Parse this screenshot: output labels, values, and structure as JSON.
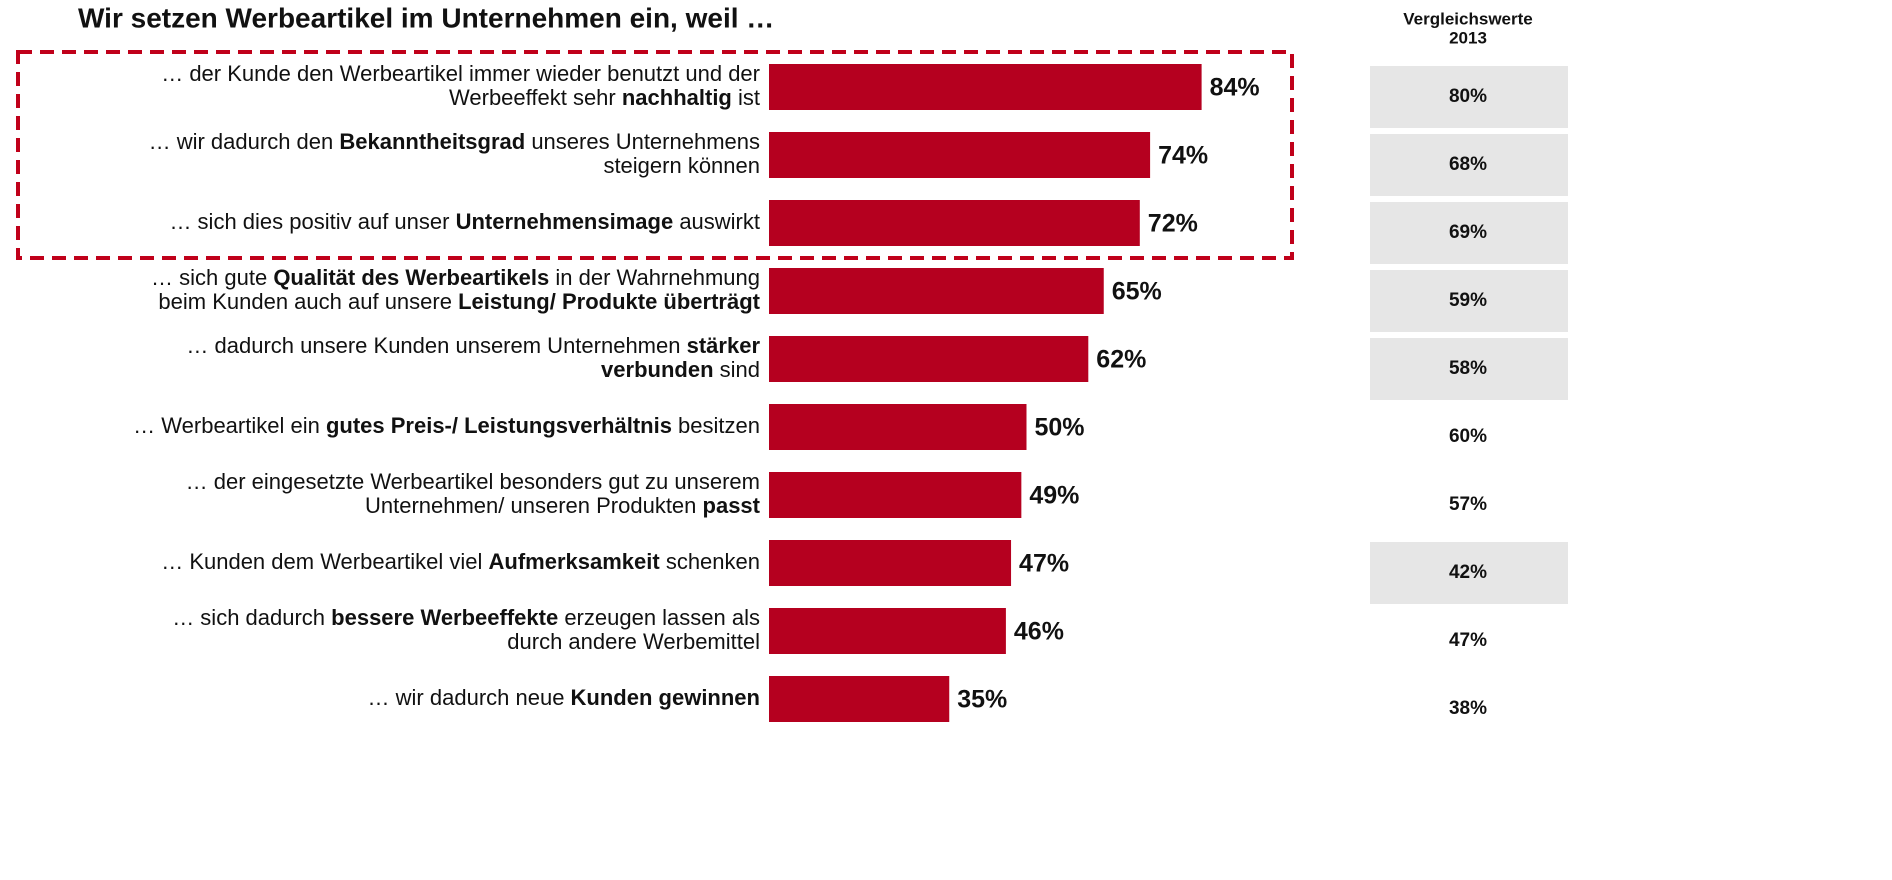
{
  "chart_data": {
    "type": "bar",
    "title": "Wir setzen Werbeartikel im Unternehmen ein, weil …",
    "categories": [
      [
        [
          {
            "text": "… der Kunde den Werbeartikel immer wieder benutzt und der",
            "bold": false
          }
        ],
        [
          {
            "text": "Werbeeffekt sehr ",
            "bold": false
          },
          {
            "text": "nachhaltig",
            "bold": true
          },
          {
            "text": " ist",
            "bold": false
          }
        ]
      ],
      [
        [
          {
            "text": "… wir dadurch den ",
            "bold": false
          },
          {
            "text": "Bekanntheitsgrad",
            "bold": true
          },
          {
            "text": " unseres Unternehmens",
            "bold": false
          }
        ],
        [
          {
            "text": "steigern können",
            "bold": false
          }
        ]
      ],
      [
        [
          {
            "text": "… sich dies positiv auf unser ",
            "bold": false
          },
          {
            "text": "Unternehmensimage",
            "bold": true
          },
          {
            "text": " auswirkt",
            "bold": false
          }
        ]
      ],
      [
        [
          {
            "text": "… sich gute ",
            "bold": false
          },
          {
            "text": "Qualität des Werbeartikels",
            "bold": true
          },
          {
            "text": " in der Wahrnehmung",
            "bold": false
          }
        ],
        [
          {
            "text": "beim Kunden auch auf unsere ",
            "bold": false
          },
          {
            "text": "Leistung/ Produkte überträgt",
            "bold": true
          }
        ]
      ],
      [
        [
          {
            "text": "… dadurch unsere Kunden unserem Unternehmen ",
            "bold": false
          },
          {
            "text": "stärker",
            "bold": true
          }
        ],
        [
          {
            "text": "verbunden",
            "bold": true
          },
          {
            "text": " sind",
            "bold": false
          }
        ]
      ],
      [
        [
          {
            "text": "… Werbeartikel ein ",
            "bold": false
          },
          {
            "text": "gutes Preis-/ Leistungsverhältnis",
            "bold": true
          },
          {
            "text": " besitzen",
            "bold": false
          }
        ]
      ],
      [
        [
          {
            "text": "… der eingesetzte Werbeartikel besonders gut zu unserem",
            "bold": false
          }
        ],
        [
          {
            "text": "Unternehmen/ unseren Produkten ",
            "bold": false
          },
          {
            "text": "passt",
            "bold": true
          }
        ]
      ],
      [
        [
          {
            "text": "… Kunden dem Werbeartikel viel ",
            "bold": false
          },
          {
            "text": "Aufmerksamkeit",
            "bold": true
          },
          {
            "text": " schenken",
            "bold": false
          }
        ]
      ],
      [
        [
          {
            "text": "… sich dadurch ",
            "bold": false
          },
          {
            "text": "bessere Werbeeffekte",
            "bold": true
          },
          {
            "text": " erzeugen lassen als",
            "bold": false
          }
        ],
        [
          {
            "text": "durch andere Werbemittel",
            "bold": false
          }
        ]
      ],
      [
        [
          {
            "text": "… wir dadurch neue ",
            "bold": false
          },
          {
            "text": "Kunden gewinnen",
            "bold": true
          }
        ]
      ]
    ],
    "values": [
      84,
      74,
      72,
      65,
      62,
      50,
      49,
      47,
      46,
      35
    ],
    "value_labels": [
      "84%",
      "74%",
      "72%",
      "65%",
      "62%",
      "50%",
      "49%",
      "47%",
      "46%",
      "35%"
    ],
    "color": "#b5001f",
    "xlim": [
      0,
      100
    ],
    "highlight_count": 3,
    "highlight_color": "#c0001a",
    "comparison": {
      "title": [
        "Vergleichswerte",
        "2013"
      ],
      "values": [
        80,
        68,
        69,
        59,
        58,
        60,
        57,
        42,
        47,
        38
      ],
      "value_labels": [
        "80%",
        "68%",
        "69%",
        "59%",
        "58%",
        "60%",
        "57%",
        "42%",
        "47%",
        "38%"
      ],
      "shaded": [
        true,
        true,
        true,
        true,
        true,
        false,
        false,
        true,
        false,
        false
      ],
      "shade_color": "#e6e6e6"
    }
  }
}
